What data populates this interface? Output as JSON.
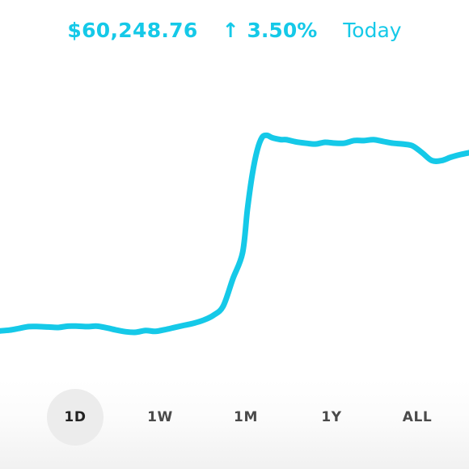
{
  "header": {
    "price": "$60,248.76",
    "change_arrow": "↑",
    "change_percent": "3.50%",
    "period": "Today"
  },
  "chart_data": {
    "type": "line",
    "title": "",
    "xlabel": "",
    "ylabel": "",
    "color": "#15c9e8",
    "x": [
      0,
      12,
      24,
      36,
      48,
      60,
      72,
      84,
      96,
      108,
      120,
      132,
      144,
      156,
      168,
      180,
      192,
      204,
      216,
      228,
      240,
      252,
      264,
      276,
      288,
      300,
      306,
      312,
      318,
      324,
      330,
      336,
      342,
      348,
      354,
      366,
      378,
      390,
      402,
      414,
      426,
      438,
      450,
      462,
      474,
      486,
      498,
      510,
      522,
      534,
      546,
      558,
      570,
      580
    ],
    "y": [
      20,
      22,
      26,
      30,
      30,
      29,
      28,
      31,
      31,
      30,
      31,
      27,
      22,
      18,
      17,
      21,
      19,
      23,
      28,
      33,
      38,
      45,
      56,
      77,
      140,
      200,
      300,
      380,
      435,
      465,
      470,
      465,
      462,
      460,
      460,
      455,
      452,
      450,
      454,
      452,
      452,
      458,
      458,
      460,
      456,
      452,
      450,
      446,
      430,
      412,
      412,
      420,
      426,
      430
    ],
    "notes_y_units": "arbitrary relative level"
  },
  "ranges": {
    "options": [
      "1D",
      "1W",
      "1M",
      "1Y",
      "ALL"
    ],
    "selected": "1D"
  },
  "colors": {
    "accent": "#15c9e8",
    "selected_bg": "#ececec",
    "label": "#4a4a4a"
  }
}
